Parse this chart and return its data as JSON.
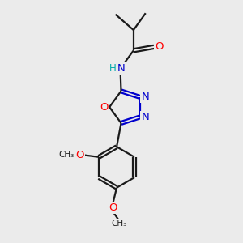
{
  "bg_color": "#ebebeb",
  "bond_color": "#1a1a1a",
  "atom_colors": {
    "O": "#ff0000",
    "N": "#0000cd",
    "H": "#00aaaa",
    "C": "#1a1a1a"
  },
  "figsize": [
    3.0,
    3.0
  ],
  "dpi": 100
}
